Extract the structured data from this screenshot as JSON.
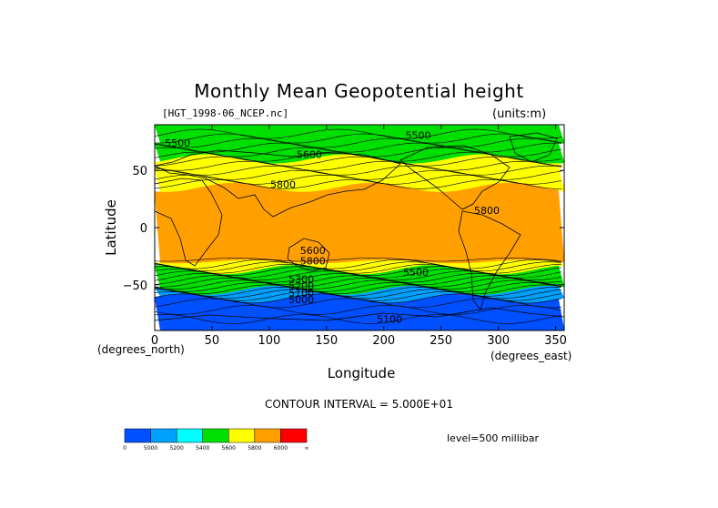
{
  "chart_data": {
    "type": "heatmap",
    "title": "Monthly Mean Geopotential height",
    "subtitle": "[HGT_1998-06_NCEP.nc]",
    "units": "(units:m)",
    "xlabel": "Longitude",
    "ylabel": "Latitude",
    "x_unit_label": "(degrees_east)",
    "y_unit_label": "(degrees_north)",
    "xlim": [
      0,
      357.5
    ],
    "ylim": [
      -90,
      90
    ],
    "xticks": [
      0,
      50,
      100,
      150,
      200,
      250,
      300,
      350
    ],
    "yticks": [
      -50,
      0,
      50
    ],
    "contour_interval_text": "CONTOUR INTERVAL = 5.000E+01",
    "level_text": "level=500 millibar",
    "contour_labels": [
      {
        "text": "5500",
        "lon": 20,
        "lat": 74
      },
      {
        "text": "5500",
        "lon": 230,
        "lat": 81
      },
      {
        "text": "5600",
        "lon": 135,
        "lat": 64
      },
      {
        "text": "5800",
        "lon": 112,
        "lat": 38
      },
      {
        "text": "5800",
        "lon": 290,
        "lat": 15
      },
      {
        "text": "5600",
        "lon": 138,
        "lat": -20
      },
      {
        "text": "5800",
        "lon": 138,
        "lat": -29
      },
      {
        "text": "5500",
        "lon": 228,
        "lat": -39
      },
      {
        "text": "5300",
        "lon": 128,
        "lat": -45
      },
      {
        "text": "5200",
        "lon": 128,
        "lat": -51
      },
      {
        "text": "5100",
        "lon": 128,
        "lat": -57
      },
      {
        "text": "5000",
        "lon": 128,
        "lat": -63
      },
      {
        "text": "5100",
        "lon": 205,
        "lat": -80
      }
    ],
    "colorbar": {
      "colors": [
        "#0050ff",
        "#00a0ff",
        "#00ffff",
        "#00e000",
        "#ffff00",
        "#ffa000",
        "#ff0000"
      ],
      "labels": [
        "0",
        "5000",
        "5200",
        "5400",
        "5600",
        "5800",
        "6000",
        "∞"
      ]
    },
    "bands": [
      {
        "lat_from": 90,
        "lat_to": 78,
        "color": "#00e000"
      },
      {
        "lat_from": 78,
        "lat_to": 70,
        "color": "#00e000"
      },
      {
        "lat_from": 70,
        "lat_to": 60,
        "color": "#00e000"
      },
      {
        "lat_from": 60,
        "lat_to": 50,
        "color": "#ffff00"
      },
      {
        "lat_from": 50,
        "lat_to": 35,
        "color": "#ffff00"
      },
      {
        "lat_from": 35,
        "lat_to": -30,
        "color": "#ffa000"
      },
      {
        "lat_from": -30,
        "lat_to": -37,
        "color": "#ffff00"
      },
      {
        "lat_from": -37,
        "lat_to": -55,
        "color": "#00e000"
      },
      {
        "lat_from": -55,
        "lat_to": -62,
        "color": "#00a0ff"
      },
      {
        "lat_from": -62,
        "lat_to": -90,
        "color": "#0050ff"
      }
    ],
    "contour_lats": [
      82,
      78,
      74,
      70,
      66,
      62,
      58,
      54,
      50,
      46,
      42,
      38,
      -28,
      -32,
      -34,
      -36,
      -38,
      -40,
      -42,
      -44,
      -46,
      -48,
      -50,
      -52,
      -54,
      -56,
      -58,
      -60,
      -62,
      -66,
      -72,
      -80
    ]
  }
}
